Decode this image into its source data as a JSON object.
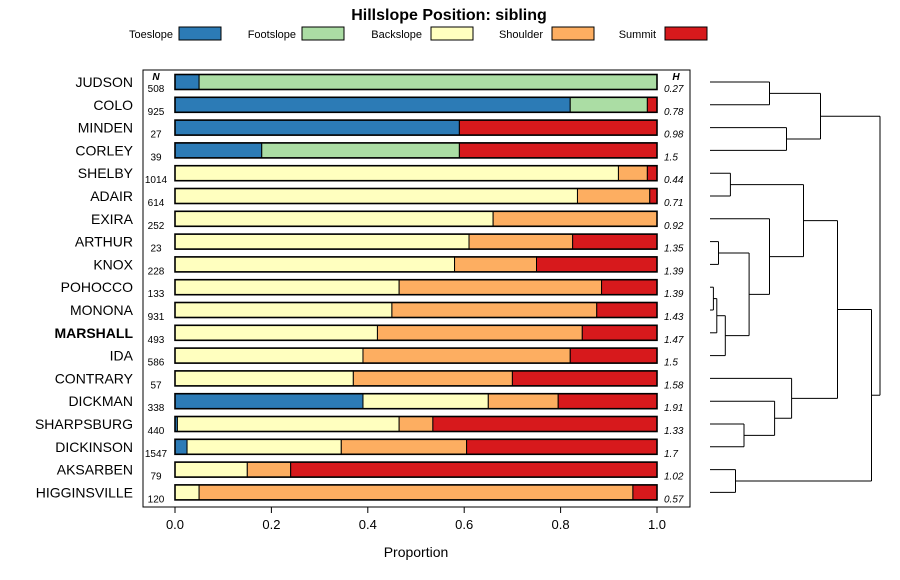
{
  "chart_data": {
    "type": "bar",
    "orientation": "horizontal-stacked",
    "title": "Hillslope Position: sibling",
    "xlabel": "Proportion",
    "ylabel": "",
    "xlim": [
      0,
      1
    ],
    "x_ticks": [
      "0.0",
      "0.2",
      "0.4",
      "0.6",
      "0.8",
      "1.0"
    ],
    "n_header": "N",
    "h_header": "H",
    "legend_position": "top",
    "series": [
      {
        "name": "Toeslope",
        "color": "#2c7bb6"
      },
      {
        "name": "Footslope",
        "color": "#abdda4"
      },
      {
        "name": "Backslope",
        "color": "#ffffbf"
      },
      {
        "name": "Shoulder",
        "color": "#fdae61"
      },
      {
        "name": "Summit",
        "color": "#d7191c"
      }
    ],
    "rows": [
      {
        "name": "JUDSON",
        "n": "508",
        "h": "0.27",
        "bold": false,
        "values": [
          0.05,
          0.95,
          0,
          0,
          0
        ]
      },
      {
        "name": "COLO",
        "n": "925",
        "h": "0.78",
        "bold": false,
        "values": [
          0.82,
          0.16,
          0,
          0,
          0.02
        ]
      },
      {
        "name": "MINDEN",
        "n": "27",
        "h": "0.98",
        "bold": false,
        "values": [
          0.59,
          0,
          0,
          0,
          0.41
        ]
      },
      {
        "name": "CORLEY",
        "n": "39",
        "h": "1.5",
        "bold": false,
        "values": [
          0.18,
          0.41,
          0,
          0,
          0.41
        ]
      },
      {
        "name": "SHELBY",
        "n": "1014",
        "h": "0.44",
        "bold": false,
        "values": [
          0,
          0,
          0.92,
          0.06,
          0.02
        ]
      },
      {
        "name": "ADAIR",
        "n": "614",
        "h": "0.71",
        "bold": false,
        "values": [
          0,
          0,
          0.835,
          0.15,
          0.015
        ]
      },
      {
        "name": "EXIRA",
        "n": "252",
        "h": "0.92",
        "bold": false,
        "values": [
          0,
          0,
          0.66,
          0.34,
          0
        ]
      },
      {
        "name": "ARTHUR",
        "n": "23",
        "h": "1.35",
        "bold": false,
        "values": [
          0,
          0,
          0.61,
          0.215,
          0.175
        ]
      },
      {
        "name": "KNOX",
        "n": "228",
        "h": "1.39",
        "bold": false,
        "values": [
          0,
          0,
          0.58,
          0.17,
          0.25
        ]
      },
      {
        "name": "POHOCCO",
        "n": "133",
        "h": "1.39",
        "bold": false,
        "values": [
          0,
          0,
          0.465,
          0.42,
          0.115
        ]
      },
      {
        "name": "MONONA",
        "n": "931",
        "h": "1.43",
        "bold": false,
        "values": [
          0,
          0,
          0.45,
          0.425,
          0.125
        ]
      },
      {
        "name": "MARSHALL",
        "n": "493",
        "h": "1.47",
        "bold": true,
        "values": [
          0,
          0,
          0.42,
          0.425,
          0.155
        ]
      },
      {
        "name": "IDA",
        "n": "586",
        "h": "1.5",
        "bold": false,
        "values": [
          0,
          0,
          0.39,
          0.43,
          0.18
        ]
      },
      {
        "name": "CONTRARY",
        "n": "57",
        "h": "1.58",
        "bold": false,
        "values": [
          0,
          0,
          0.37,
          0.33,
          0.3
        ]
      },
      {
        "name": "DICKMAN",
        "n": "338",
        "h": "1.91",
        "bold": false,
        "values": [
          0.39,
          0,
          0.26,
          0.145,
          0.205
        ]
      },
      {
        "name": "SHARPSBURG",
        "n": "440",
        "h": "1.33",
        "bold": false,
        "values": [
          0.005,
          0,
          0.46,
          0.07,
          0.465
        ]
      },
      {
        "name": "DICKINSON",
        "n": "1547",
        "h": "1.7",
        "bold": false,
        "values": [
          0.025,
          0,
          0.32,
          0.26,
          0.395
        ]
      },
      {
        "name": "AKSARBEN",
        "n": "79",
        "h": "1.02",
        "bold": false,
        "values": [
          0,
          0,
          0.15,
          0.09,
          0.76
        ]
      },
      {
        "name": "HIGGINSVILLE",
        "n": "120",
        "h": "0.57",
        "bold": false,
        "values": [
          0,
          0,
          0.05,
          0.9,
          0.05
        ]
      }
    ],
    "dendrogram": {
      "description": "hierarchical clustering of rows (leaf order top to bottom)",
      "merges": [
        [
          0,
          1,
          0.35
        ],
        [
          2,
          3,
          0.45
        ],
        [
          "m0",
          "m1",
          0.65
        ],
        [
          4,
          5,
          0.12
        ],
        [
          9,
          10,
          0.02
        ],
        [
          "m4",
          11,
          0.04
        ],
        [
          "m5",
          12,
          0.09
        ],
        [
          7,
          8,
          0.05
        ],
        [
          "m7",
          "m6",
          0.23
        ],
        [
          6,
          "m8",
          0.35
        ],
        [
          "m3",
          "m9",
          0.55
        ],
        [
          15,
          16,
          0.2
        ],
        [
          14,
          "m11",
          0.38
        ],
        [
          13,
          "m12",
          0.48
        ],
        [
          "m10",
          "m13",
          0.75
        ],
        [
          17,
          18,
          0.15
        ],
        [
          "m14",
          "m15",
          0.95
        ],
        [
          "m2",
          "m16",
          1.0
        ]
      ]
    }
  }
}
